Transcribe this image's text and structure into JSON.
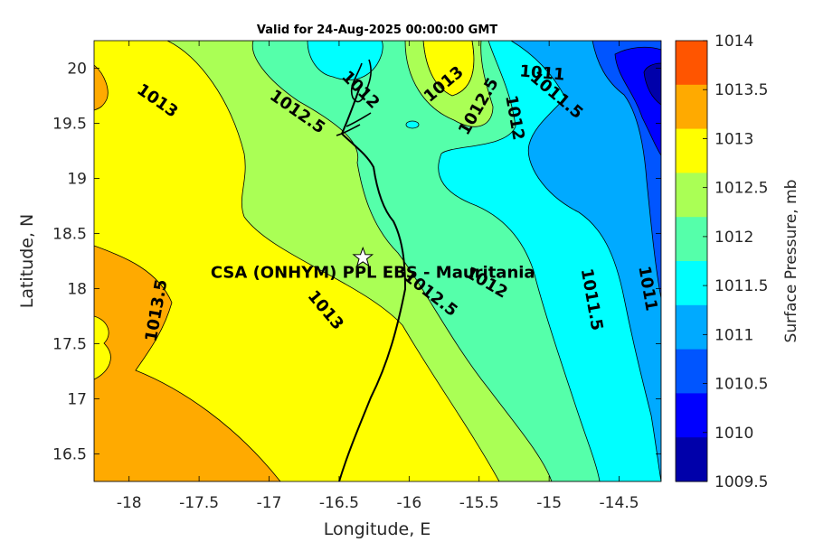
{
  "title": "Valid for 24-Aug-2025 00:00:00 GMT",
  "xlabel": "Longitude, E",
  "ylabel": "Latitude, N",
  "xticks": [
    "-18",
    "-17.5",
    "-17",
    "-16.5",
    "-16",
    "-15.5",
    "-15",
    "-14.5"
  ],
  "yticks": [
    "20",
    "19.5",
    "19",
    "18.5",
    "18",
    "17.5",
    "17",
    "16.5"
  ],
  "site": {
    "label": "CSA (ONHYM) PPL EBS  - Mauritania",
    "lon": -16.33,
    "lat": 18.28
  },
  "colorbar": {
    "label": "Surface Pressure, mb",
    "ticks": [
      "1014",
      "1013.5",
      "1013",
      "1012.5",
      "1012",
      "1011.5",
      "1011",
      "1010.5",
      "1010",
      "1009.5"
    ],
    "colors": [
      "#ff5500",
      "#ffaa00",
      "#ffff00",
      "#aaff55",
      "#55ffaa",
      "#00ffff",
      "#00aaff",
      "#0055ff",
      "#0000ff",
      "#0000aa"
    ]
  },
  "contour_labels": [
    {
      "text": "1013",
      "lon": -17.8,
      "lat": 19.7,
      "rot": 35
    },
    {
      "text": "1012.5",
      "lon": -16.8,
      "lat": 19.6,
      "rot": 35
    },
    {
      "text": "1012",
      "lon": -16.35,
      "lat": 19.8,
      "rot": 45
    },
    {
      "text": "1013",
      "lon": -15.75,
      "lat": 19.85,
      "rot": -40
    },
    {
      "text": "1012.5",
      "lon": -15.5,
      "lat": 19.65,
      "rot": -60
    },
    {
      "text": "1012",
      "lon": -15.25,
      "lat": 19.55,
      "rot": 80
    },
    {
      "text": "1011",
      "lon": -15.05,
      "lat": 19.95,
      "rot": 5
    },
    {
      "text": "1011.5",
      "lon": -14.95,
      "lat": 19.75,
      "rot": 40
    },
    {
      "text": "1013.5",
      "lon": -17.8,
      "lat": 17.8,
      "rot": -80
    },
    {
      "text": "1013",
      "lon": -16.6,
      "lat": 17.8,
      "rot": 50
    },
    {
      "text": "1012.5",
      "lon": -15.85,
      "lat": 17.95,
      "rot": 38
    },
    {
      "text": "1012",
      "lon": -15.45,
      "lat": 18.05,
      "rot": 30
    },
    {
      "text": "1011.5",
      "lon": -14.7,
      "lat": 17.9,
      "rot": 80
    },
    {
      "text": "1011",
      "lon": -14.3,
      "lat": 18.0,
      "rot": 80
    }
  ]
}
